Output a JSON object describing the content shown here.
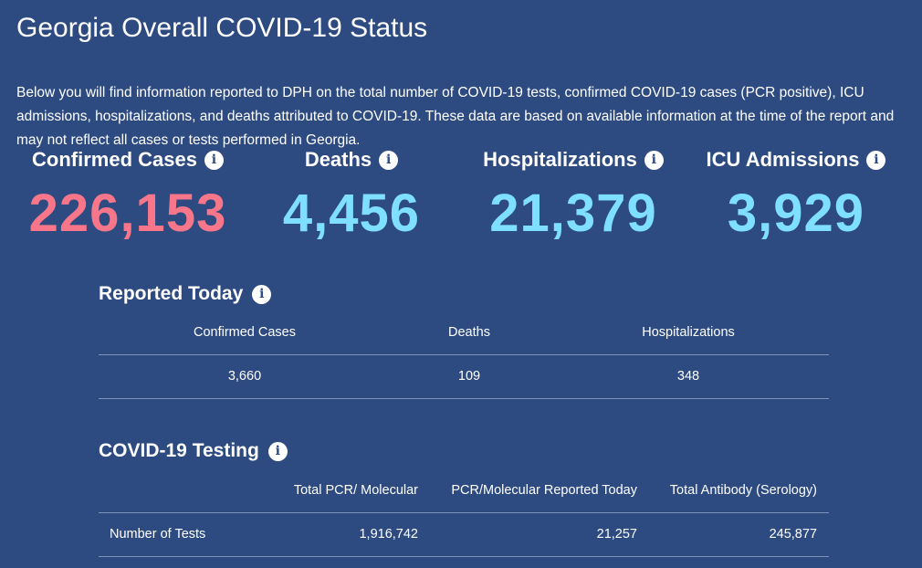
{
  "title": "Georgia Overall COVID-19 Status",
  "description": "Below you will find information reported to DPH on the total number of COVID-19 tests, confirmed COVID-19 cases (PCR positive), ICU admissions, hospitalizations, and deaths attributed to COVID-19. These data are based on available information at the time of the report and may not reflect all cases or tests performed in Georgia.",
  "colors": {
    "background": "#2d4b80",
    "cases": "#f7768a",
    "other": "#7fdfff"
  },
  "stats": [
    {
      "label": "Confirmed Cases",
      "value": "226,153"
    },
    {
      "label": "Deaths",
      "value": "4,456"
    },
    {
      "label": "Hospitalizations",
      "value": "21,379"
    },
    {
      "label": "ICU Admissions",
      "value": "3,929"
    }
  ],
  "reported_today": {
    "heading": "Reported Today",
    "headers": [
      "Confirmed Cases",
      "Deaths",
      "Hospitalizations"
    ],
    "values": [
      "3,660",
      "109",
      "348"
    ]
  },
  "testing": {
    "heading": "COVID-19 Testing",
    "headers": [
      "",
      "Total PCR/ Molecular",
      "PCR/Molecular Reported Today",
      "Total Antibody (Serology)"
    ],
    "row": [
      "Number of Tests",
      "1,916,742",
      "21,257",
      "245,877"
    ]
  }
}
